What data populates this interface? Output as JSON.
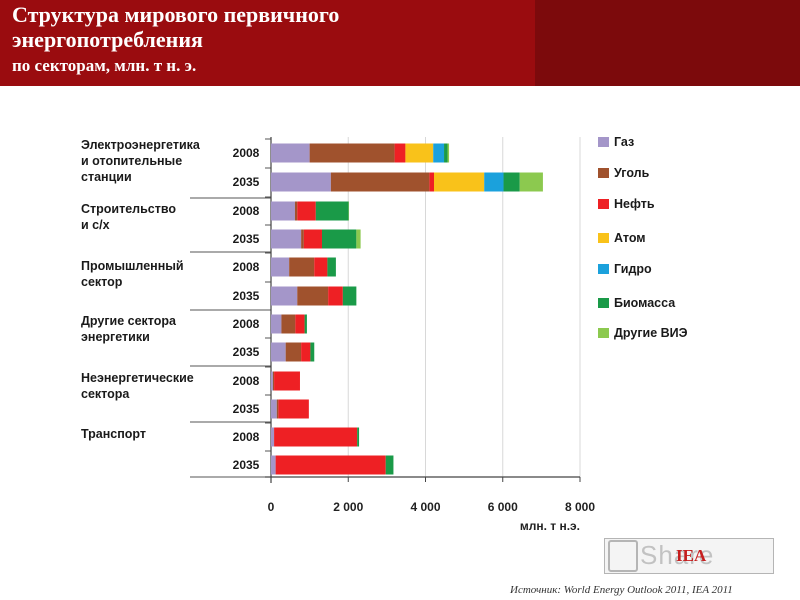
{
  "header": {
    "title_line1": "Структура мирового первичного",
    "title_line2": "энергопотребления",
    "subtitle": "по секторам, млн. т н. э."
  },
  "colors": {
    "header_bg": "#9a0c0f",
    "header_right_bg": "#7c0a0c"
  },
  "chart_data": {
    "type": "bar",
    "orientation": "horizontal",
    "stacked": true,
    "xlabel": "млн. т н.э.",
    "xlim": [
      0,
      8000
    ],
    "xticks": [
      0,
      2000,
      4000,
      6000,
      8000
    ],
    "xtick_labels": [
      "0",
      "2 000",
      "4 000",
      "6 000",
      "8 000"
    ],
    "legend_position": "right",
    "groups": [
      {
        "label_lines": [
          "Электроэнергетика",
          "и отопительные",
          "станции"
        ],
        "years": [
          "2008",
          "2035"
        ]
      },
      {
        "label_lines": [
          "Строительство",
          "и с/х"
        ],
        "years": [
          "2008",
          "2035"
        ]
      },
      {
        "label_lines": [
          "Промышленный",
          "сектор"
        ],
        "years": [
          "2008",
          "2035"
        ]
      },
      {
        "label_lines": [
          "Другие сектора",
          "энергетики"
        ],
        "years": [
          "2008",
          "2035"
        ]
      },
      {
        "label_lines": [
          "Неэнергетические",
          "сектора"
        ],
        "years": [
          "2008",
          "2035"
        ]
      },
      {
        "label_lines": [
          "Транспорт"
        ],
        "years": [
          "2008",
          "2035"
        ]
      }
    ],
    "series": [
      {
        "name": "Газ",
        "color": "#a496c9",
        "values": [
          1000,
          1550,
          620,
          780,
          470,
          680,
          270,
          380,
          50,
          150,
          80,
          120
        ]
      },
      {
        "name": "Уголь",
        "color": "#a0522d",
        "values": [
          2200,
          2550,
          60,
          70,
          650,
          800,
          360,
          400,
          30,
          40,
          0,
          0
        ]
      },
      {
        "name": "Нефть",
        "color": "#ee2024",
        "values": [
          280,
          120,
          480,
          470,
          340,
          380,
          240,
          240,
          670,
          790,
          2150,
          2850
        ]
      },
      {
        "name": "Атом",
        "color": "#f9c21a",
        "values": [
          720,
          1300,
          0,
          0,
          0,
          0,
          0,
          0,
          0,
          0,
          0,
          0
        ]
      },
      {
        "name": "Гидро",
        "color": "#1ba1dc",
        "values": [
          280,
          500,
          0,
          0,
          0,
          0,
          0,
          0,
          0,
          0,
          0,
          0
        ]
      },
      {
        "name": "Биомасса",
        "color": "#1a9a48",
        "values": [
          90,
          420,
          850,
          890,
          220,
          350,
          60,
          100,
          0,
          0,
          50,
          200
        ]
      },
      {
        "name": "Другие ВИЭ",
        "color": "#8cc94f",
        "values": [
          40,
          600,
          10,
          110,
          0,
          0,
          0,
          0,
          0,
          0,
          0,
          0
        ]
      }
    ]
  },
  "logo": {
    "text": "IEA"
  },
  "watermark": {
    "text": "Share"
  },
  "source": "Источник: World Energy Outlook 2011, IEA 2011"
}
